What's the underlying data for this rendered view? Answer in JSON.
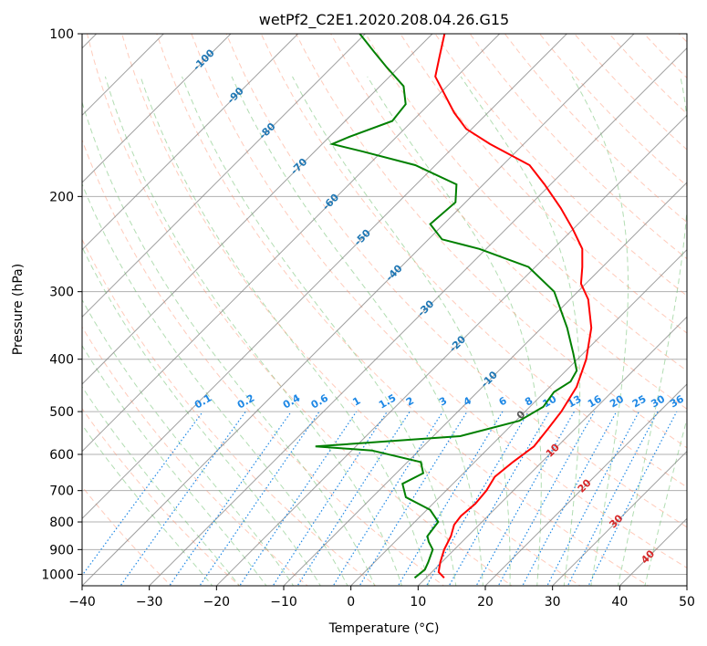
{
  "chart_data": {
    "type": "skew-t log-p",
    "title": "wetPf2_C2E1.2020.208.04.26.G15",
    "xlabel": "Temperature (°C)",
    "ylabel": "Pressure (hPa)",
    "xlim": [
      -40,
      50
    ],
    "ylim": [
      1050,
      100
    ],
    "y_scale": "log",
    "grid": true,
    "x_ticks": [
      "−40",
      "−30",
      "−20",
      "−10",
      "0",
      "10",
      "20",
      "30",
      "40",
      "50"
    ],
    "y_ticks": [
      "100",
      "200",
      "300",
      "400",
      "500",
      "600",
      "700",
      "800",
      "900",
      "1000"
    ],
    "series": [
      {
        "color": "#ff0000",
        "data": [
          {
            "p": 1015,
            "t": 12.7
          },
          {
            "p": 990,
            "t": 11.0
          },
          {
            "p": 950,
            "t": 9.8
          },
          {
            "p": 900,
            "t": 8.5
          },
          {
            "p": 850,
            "t": 7.5
          },
          {
            "p": 810,
            "t": 6.3
          },
          {
            "p": 780,
            "t": 6.0
          },
          {
            "p": 740,
            "t": 6.3
          },
          {
            "p": 700,
            "t": 6.0
          },
          {
            "p": 660,
            "t": 5.2
          },
          {
            "p": 620,
            "t": 5.7
          },
          {
            "p": 580,
            "t": 6.5
          },
          {
            "p": 540,
            "t": 6.0
          },
          {
            "p": 500,
            "t": 5.4
          },
          {
            "p": 450,
            "t": 4.0
          },
          {
            "p": 400,
            "t": 1.3
          },
          {
            "p": 350,
            "t": -2.6
          },
          {
            "p": 310,
            "t": -7.3
          },
          {
            "p": 290,
            "t": -10.7
          },
          {
            "p": 270,
            "t": -13.0
          },
          {
            "p": 250,
            "t": -15.7
          },
          {
            "p": 230,
            "t": -20.0
          },
          {
            "p": 210,
            "t": -25.0
          },
          {
            "p": 190,
            "t": -30.9
          },
          {
            "p": 175,
            "t": -36.0
          },
          {
            "p": 160,
            "t": -45.0
          },
          {
            "p": 150,
            "t": -50.8
          },
          {
            "p": 140,
            "t": -55.0
          },
          {
            "p": 120,
            "t": -63.2
          },
          {
            "p": 110,
            "t": -65.6
          },
          {
            "p": 100,
            "t": -68.2
          }
        ]
      },
      {
        "color": "#008000",
        "data": [
          {
            "p": 1015,
            "t": 8.3
          },
          {
            "p": 980,
            "t": 8.6
          },
          {
            "p": 950,
            "t": 8.0
          },
          {
            "p": 900,
            "t": 6.8
          },
          {
            "p": 870,
            "t": 5.0
          },
          {
            "p": 850,
            "t": 4.0
          },
          {
            "p": 800,
            "t": 3.5
          },
          {
            "p": 760,
            "t": 0.5
          },
          {
            "p": 720,
            "t": -5.0
          },
          {
            "p": 680,
            "t": -7.5
          },
          {
            "p": 650,
            "t": -6.0
          },
          {
            "p": 620,
            "t": -8.0
          },
          {
            "p": 590,
            "t": -17.0
          },
          {
            "p": 580,
            "t": -26.0
          },
          {
            "p": 570,
            "t": -18.0
          },
          {
            "p": 555,
            "t": -6.0
          },
          {
            "p": 520,
            "t": 0.5
          },
          {
            "p": 490,
            "t": 2.0
          },
          {
            "p": 460,
            "t": 1.4
          },
          {
            "p": 440,
            "t": 2.3
          },
          {
            "p": 420,
            "t": 1.6
          },
          {
            "p": 390,
            "t": -1.5
          },
          {
            "p": 350,
            "t": -6.2
          },
          {
            "p": 300,
            "t": -13.5
          },
          {
            "p": 270,
            "t": -21.0
          },
          {
            "p": 250,
            "t": -31.0
          },
          {
            "p": 240,
            "t": -38.0
          },
          {
            "p": 225,
            "t": -42.0
          },
          {
            "p": 205,
            "t": -41.5
          },
          {
            "p": 190,
            "t": -44.0
          },
          {
            "p": 175,
            "t": -53.0
          },
          {
            "p": 165,
            "t": -63.0
          },
          {
            "p": 160,
            "t": -68.5
          },
          {
            "p": 155,
            "t": -67.0
          },
          {
            "p": 145,
            "t": -63.0
          },
          {
            "p": 135,
            "t": -63.5
          },
          {
            "p": 125,
            "t": -66.5
          },
          {
            "p": 115,
            "t": -72.0
          },
          {
            "p": 108,
            "t": -76.0
          },
          {
            "p": 100,
            "t": -80.8
          }
        ]
      }
    ],
    "isotherms": [
      -100,
      -90,
      -80,
      -70,
      -60,
      -50,
      -40,
      -30,
      -20,
      -10,
      0,
      10,
      20,
      30,
      40
    ],
    "mixing_ratio_labels": [
      "0.1",
      "0.2",
      "0.4",
      "0.6",
      "1",
      "1.5",
      "2",
      "3",
      "4",
      "6",
      "8",
      "10",
      "13",
      "16",
      "20",
      "25",
      "30",
      "36"
    ],
    "mixing_ratio_values": [
      0.1,
      0.2,
      0.4,
      0.6,
      1,
      1.5,
      2,
      3,
      4,
      6,
      8,
      10,
      13,
      16,
      20,
      25,
      30,
      36
    ],
    "colors": {
      "temperature": "#ff0000",
      "dewpoint": "#008000",
      "isotherm": "#808080",
      "dry_adiabat": "#ff8c69",
      "moist_adiabat": "#66bb66",
      "mixing_ratio": "#1e88e5",
      "iso_label_cold": "#1f77b4",
      "iso_label_warm": "#d62728"
    }
  }
}
